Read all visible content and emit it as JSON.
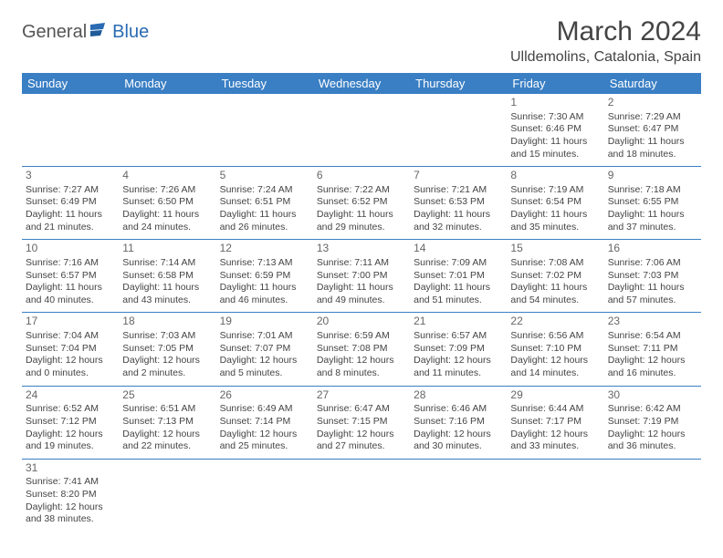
{
  "logo": {
    "part1": "General",
    "part2": "Blue"
  },
  "title": "March 2024",
  "location": "Ulldemolins, Catalonia, Spain",
  "colors": {
    "header_bg": "#3a7fc4",
    "header_text": "#ffffff",
    "border": "#3a7fc4",
    "logo_accent": "#2a6bb3",
    "text": "#444444"
  },
  "typography": {
    "title_fontsize": 30,
    "location_fontsize": 16,
    "dayheader_fontsize": 13,
    "cell_fontsize": 10.5,
    "daynum_fontsize": 12
  },
  "day_headers": [
    "Sunday",
    "Monday",
    "Tuesday",
    "Wednesday",
    "Thursday",
    "Friday",
    "Saturday"
  ],
  "weeks": [
    [
      null,
      null,
      null,
      null,
      null,
      {
        "n": "1",
        "sr": "Sunrise: 7:30 AM",
        "ss": "Sunset: 6:46 PM",
        "d1": "Daylight: 11 hours",
        "d2": "and 15 minutes."
      },
      {
        "n": "2",
        "sr": "Sunrise: 7:29 AM",
        "ss": "Sunset: 6:47 PM",
        "d1": "Daylight: 11 hours",
        "d2": "and 18 minutes."
      }
    ],
    [
      {
        "n": "3",
        "sr": "Sunrise: 7:27 AM",
        "ss": "Sunset: 6:49 PM",
        "d1": "Daylight: 11 hours",
        "d2": "and 21 minutes."
      },
      {
        "n": "4",
        "sr": "Sunrise: 7:26 AM",
        "ss": "Sunset: 6:50 PM",
        "d1": "Daylight: 11 hours",
        "d2": "and 24 minutes."
      },
      {
        "n": "5",
        "sr": "Sunrise: 7:24 AM",
        "ss": "Sunset: 6:51 PM",
        "d1": "Daylight: 11 hours",
        "d2": "and 26 minutes."
      },
      {
        "n": "6",
        "sr": "Sunrise: 7:22 AM",
        "ss": "Sunset: 6:52 PM",
        "d1": "Daylight: 11 hours",
        "d2": "and 29 minutes."
      },
      {
        "n": "7",
        "sr": "Sunrise: 7:21 AM",
        "ss": "Sunset: 6:53 PM",
        "d1": "Daylight: 11 hours",
        "d2": "and 32 minutes."
      },
      {
        "n": "8",
        "sr": "Sunrise: 7:19 AM",
        "ss": "Sunset: 6:54 PM",
        "d1": "Daylight: 11 hours",
        "d2": "and 35 minutes."
      },
      {
        "n": "9",
        "sr": "Sunrise: 7:18 AM",
        "ss": "Sunset: 6:55 PM",
        "d1": "Daylight: 11 hours",
        "d2": "and 37 minutes."
      }
    ],
    [
      {
        "n": "10",
        "sr": "Sunrise: 7:16 AM",
        "ss": "Sunset: 6:57 PM",
        "d1": "Daylight: 11 hours",
        "d2": "and 40 minutes."
      },
      {
        "n": "11",
        "sr": "Sunrise: 7:14 AM",
        "ss": "Sunset: 6:58 PM",
        "d1": "Daylight: 11 hours",
        "d2": "and 43 minutes."
      },
      {
        "n": "12",
        "sr": "Sunrise: 7:13 AM",
        "ss": "Sunset: 6:59 PM",
        "d1": "Daylight: 11 hours",
        "d2": "and 46 minutes."
      },
      {
        "n": "13",
        "sr": "Sunrise: 7:11 AM",
        "ss": "Sunset: 7:00 PM",
        "d1": "Daylight: 11 hours",
        "d2": "and 49 minutes."
      },
      {
        "n": "14",
        "sr": "Sunrise: 7:09 AM",
        "ss": "Sunset: 7:01 PM",
        "d1": "Daylight: 11 hours",
        "d2": "and 51 minutes."
      },
      {
        "n": "15",
        "sr": "Sunrise: 7:08 AM",
        "ss": "Sunset: 7:02 PM",
        "d1": "Daylight: 11 hours",
        "d2": "and 54 minutes."
      },
      {
        "n": "16",
        "sr": "Sunrise: 7:06 AM",
        "ss": "Sunset: 7:03 PM",
        "d1": "Daylight: 11 hours",
        "d2": "and 57 minutes."
      }
    ],
    [
      {
        "n": "17",
        "sr": "Sunrise: 7:04 AM",
        "ss": "Sunset: 7:04 PM",
        "d1": "Daylight: 12 hours",
        "d2": "and 0 minutes."
      },
      {
        "n": "18",
        "sr": "Sunrise: 7:03 AM",
        "ss": "Sunset: 7:05 PM",
        "d1": "Daylight: 12 hours",
        "d2": "and 2 minutes."
      },
      {
        "n": "19",
        "sr": "Sunrise: 7:01 AM",
        "ss": "Sunset: 7:07 PM",
        "d1": "Daylight: 12 hours",
        "d2": "and 5 minutes."
      },
      {
        "n": "20",
        "sr": "Sunrise: 6:59 AM",
        "ss": "Sunset: 7:08 PM",
        "d1": "Daylight: 12 hours",
        "d2": "and 8 minutes."
      },
      {
        "n": "21",
        "sr": "Sunrise: 6:57 AM",
        "ss": "Sunset: 7:09 PM",
        "d1": "Daylight: 12 hours",
        "d2": "and 11 minutes."
      },
      {
        "n": "22",
        "sr": "Sunrise: 6:56 AM",
        "ss": "Sunset: 7:10 PM",
        "d1": "Daylight: 12 hours",
        "d2": "and 14 minutes."
      },
      {
        "n": "23",
        "sr": "Sunrise: 6:54 AM",
        "ss": "Sunset: 7:11 PM",
        "d1": "Daylight: 12 hours",
        "d2": "and 16 minutes."
      }
    ],
    [
      {
        "n": "24",
        "sr": "Sunrise: 6:52 AM",
        "ss": "Sunset: 7:12 PM",
        "d1": "Daylight: 12 hours",
        "d2": "and 19 minutes."
      },
      {
        "n": "25",
        "sr": "Sunrise: 6:51 AM",
        "ss": "Sunset: 7:13 PM",
        "d1": "Daylight: 12 hours",
        "d2": "and 22 minutes."
      },
      {
        "n": "26",
        "sr": "Sunrise: 6:49 AM",
        "ss": "Sunset: 7:14 PM",
        "d1": "Daylight: 12 hours",
        "d2": "and 25 minutes."
      },
      {
        "n": "27",
        "sr": "Sunrise: 6:47 AM",
        "ss": "Sunset: 7:15 PM",
        "d1": "Daylight: 12 hours",
        "d2": "and 27 minutes."
      },
      {
        "n": "28",
        "sr": "Sunrise: 6:46 AM",
        "ss": "Sunset: 7:16 PM",
        "d1": "Daylight: 12 hours",
        "d2": "and 30 minutes."
      },
      {
        "n": "29",
        "sr": "Sunrise: 6:44 AM",
        "ss": "Sunset: 7:17 PM",
        "d1": "Daylight: 12 hours",
        "d2": "and 33 minutes."
      },
      {
        "n": "30",
        "sr": "Sunrise: 6:42 AM",
        "ss": "Sunset: 7:19 PM",
        "d1": "Daylight: 12 hours",
        "d2": "and 36 minutes."
      }
    ],
    [
      {
        "n": "31",
        "sr": "Sunrise: 7:41 AM",
        "ss": "Sunset: 8:20 PM",
        "d1": "Daylight: 12 hours",
        "d2": "and 38 minutes."
      },
      null,
      null,
      null,
      null,
      null,
      null
    ]
  ]
}
